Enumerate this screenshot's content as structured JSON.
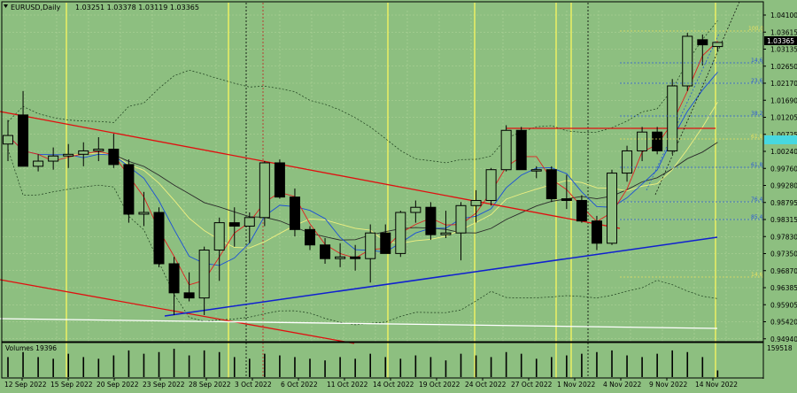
{
  "header": {
    "symbol": "EURUSD,Daily",
    "ohlc": "1.03251 1.03378 1.03119 1.03365"
  },
  "price_axis": {
    "labels": [
      "1.04100",
      "1.03615",
      "1.03135",
      "1.02650",
      "1.02170",
      "1.01690",
      "1.01205",
      "1.00725",
      "1.00240",
      "0.99760",
      "0.99280",
      "0.98795",
      "0.98315",
      "0.97830",
      "0.97350",
      "0.96870",
      "0.96385",
      "0.95905",
      "0.95420",
      "0.94940"
    ],
    "current_price": "1.03365"
  },
  "volume_panel": {
    "title": "Volumes 19396",
    "axis_label": "159518"
  },
  "time_axis": {
    "labels": [
      "12 Sep 2022",
      "15 Sep 2022",
      "20 Sep 2022",
      "23 Sep 2022",
      "28 Sep 2022",
      "3 Oct 2022",
      "6 Oct 2022",
      "11 Oct 2022",
      "14 Oct 2022",
      "19 Oct 2022",
      "24 Oct 2022",
      "27 Oct 2022",
      "1 Nov 2022",
      "4 Nov 2022",
      "9 Nov 2022",
      "14 Nov 2022"
    ]
  },
  "fib_levels": [
    {
      "label": "100.0",
      "color": "#e8e060"
    },
    {
      "label": "14.6",
      "color": "#2e5bd8"
    },
    {
      "label": "23.6",
      "color": "#2e5bd8"
    },
    {
      "label": "38.2",
      "color": "#2e5bd8"
    },
    {
      "label": "61.8",
      "color": "#2e5bd8"
    },
    {
      "label": "76.4",
      "color": "#2e5bd8"
    },
    {
      "label": "85.4",
      "color": "#2e5bd8"
    },
    {
      "label": "14.6",
      "color": "#e8e060"
    },
    {
      "label": "61.8",
      "color": "#e8e060"
    }
  ],
  "colors": {
    "background": "#8dbf80",
    "grid": "#b2d49a",
    "bull_candle": "#8dbf80",
    "bear_candle": "#000000",
    "trend_red": "#e01010",
    "trend_blue": "#1020d0",
    "support_white": "#ffffff",
    "session_yellow": "#f3f360",
    "current_price_box": "#000000",
    "highlight_box": "#48d8e0"
  },
  "chart_data": {
    "type": "candlestick",
    "title": "EURUSD,Daily",
    "ylim": [
      0.947,
      1.043
    ],
    "candles": [
      {
        "date": "9 Sep 2022",
        "open": 1.004,
        "high": 1.011,
        "low": 0.999,
        "close": 1.0065
      },
      {
        "date": "12 Sep 2022",
        "open": 1.0125,
        "high": 1.0195,
        "low": 0.998,
        "close": 0.9975
      },
      {
        "date": "13 Sep 2022",
        "open": 0.9975,
        "high": 1.001,
        "low": 0.996,
        "close": 0.999
      },
      {
        "date": "14 Sep 2022",
        "open": 0.999,
        "high": 1.003,
        "low": 0.9965,
        "close": 1.0005
      },
      {
        "date": "15 Sep 2022",
        "open": 1.0005,
        "high": 1.004,
        "low": 0.997,
        "close": 1.001
      },
      {
        "date": "16 Sep 2022",
        "open": 1.001,
        "high": 1.0045,
        "low": 0.9975,
        "close": 1.002
      },
      {
        "date": "19 Sep 2022",
        "open": 1.002,
        "high": 1.006,
        "low": 0.999,
        "close": 1.0025
      },
      {
        "date": "20 Sep 2022",
        "open": 1.0025,
        "high": 1.007,
        "low": 0.997,
        "close": 0.998
      },
      {
        "date": "21 Sep 2022",
        "open": 0.998,
        "high": 0.9995,
        "low": 0.981,
        "close": 0.9835
      },
      {
        "date": "22 Sep 2022",
        "open": 0.9835,
        "high": 0.99,
        "low": 0.98,
        "close": 0.984
      },
      {
        "date": "23 Sep 2022",
        "open": 0.984,
        "high": 0.9855,
        "low": 0.968,
        "close": 0.969
      },
      {
        "date": "26 Sep 2022",
        "open": 0.969,
        "high": 0.971,
        "low": 0.954,
        "close": 0.9605
      },
      {
        "date": "27 Sep 2022",
        "open": 0.9605,
        "high": 0.9665,
        "low": 0.958,
        "close": 0.959
      },
      {
        "date": "28 Sep 2022",
        "open": 0.959,
        "high": 0.974,
        "low": 0.954,
        "close": 0.973
      },
      {
        "date": "29 Sep 2022",
        "open": 0.973,
        "high": 0.9825,
        "low": 0.964,
        "close": 0.981
      },
      {
        "date": "30 Sep 2022",
        "open": 0.981,
        "high": 0.9855,
        "low": 0.974,
        "close": 0.98
      },
      {
        "date": "3 Oct 2022",
        "open": 0.98,
        "high": 0.984,
        "low": 0.975,
        "close": 0.9825
      },
      {
        "date": "4 Oct 2022",
        "open": 0.9825,
        "high": 0.999,
        "low": 0.98,
        "close": 0.9985
      },
      {
        "date": "5 Oct 2022",
        "open": 0.9985,
        "high": 0.9995,
        "low": 0.988,
        "close": 0.9885
      },
      {
        "date": "6 Oct 2022",
        "open": 0.9885,
        "high": 0.991,
        "low": 0.977,
        "close": 0.979
      },
      {
        "date": "7 Oct 2022",
        "open": 0.979,
        "high": 0.98,
        "low": 0.973,
        "close": 0.9745
      },
      {
        "date": "10 Oct 2022",
        "open": 0.9745,
        "high": 0.9765,
        "low": 0.969,
        "close": 0.9705
      },
      {
        "date": "11 Oct 2022",
        "open": 0.9705,
        "high": 0.975,
        "low": 0.968,
        "close": 0.971
      },
      {
        "date": "12 Oct 2022",
        "open": 0.971,
        "high": 0.9745,
        "low": 0.967,
        "close": 0.9705
      },
      {
        "date": "13 Oct 2022",
        "open": 0.9705,
        "high": 0.9805,
        "low": 0.9635,
        "close": 0.978
      },
      {
        "date": "14 Oct 2022",
        "open": 0.978,
        "high": 0.9805,
        "low": 0.972,
        "close": 0.972
      },
      {
        "date": "17 Oct 2022",
        "open": 0.972,
        "high": 0.9845,
        "low": 0.971,
        "close": 0.984
      },
      {
        "date": "18 Oct 2022",
        "open": 0.984,
        "high": 0.9875,
        "low": 0.981,
        "close": 0.9855
      },
      {
        "date": "19 Oct 2022",
        "open": 0.9855,
        "high": 0.987,
        "low": 0.976,
        "close": 0.9775
      },
      {
        "date": "20 Oct 2022",
        "open": 0.9775,
        "high": 0.9845,
        "low": 0.9765,
        "close": 0.978
      },
      {
        "date": "21 Oct 2022",
        "open": 0.978,
        "high": 0.987,
        "low": 0.97,
        "close": 0.986
      },
      {
        "date": "24 Oct 2022",
        "open": 0.986,
        "high": 0.9905,
        "low": 0.981,
        "close": 0.9875
      },
      {
        "date": "25 Oct 2022",
        "open": 0.9875,
        "high": 0.997,
        "low": 0.986,
        "close": 0.9965
      },
      {
        "date": "26 Oct 2022",
        "open": 0.9965,
        "high": 1.0095,
        "low": 0.996,
        "close": 1.008
      },
      {
        "date": "27 Oct 2022",
        "open": 1.008,
        "high": 1.009,
        "low": 0.9965,
        "close": 0.9965
      },
      {
        "date": "28 Oct 2022",
        "open": 0.9965,
        "high": 0.9975,
        "low": 0.994,
        "close": 0.9965
      },
      {
        "date": "31 Oct 2022",
        "open": 0.9965,
        "high": 0.9975,
        "low": 0.987,
        "close": 0.988
      },
      {
        "date": "1 Nov 2022",
        "open": 0.988,
        "high": 0.995,
        "low": 0.985,
        "close": 0.9875
      },
      {
        "date": "2 Nov 2022",
        "open": 0.9875,
        "high": 0.989,
        "low": 0.981,
        "close": 0.9815
      },
      {
        "date": "3 Nov 2022",
        "open": 0.9815,
        "high": 0.983,
        "low": 0.973,
        "close": 0.975
      },
      {
        "date": "4 Nov 2022",
        "open": 0.975,
        "high": 0.9965,
        "low": 0.9745,
        "close": 0.9955
      },
      {
        "date": "7 Nov 2022",
        "open": 0.9955,
        "high": 1.0035,
        "low": 0.993,
        "close": 1.002
      },
      {
        "date": "8 Nov 2022",
        "open": 1.002,
        "high": 1.009,
        "low": 0.999,
        "close": 1.0075
      },
      {
        "date": "9 Nov 2022",
        "open": 1.0075,
        "high": 1.009,
        "low": 1.001,
        "close": 1.002
      },
      {
        "date": "10 Nov 2022",
        "open": 1.002,
        "high": 1.023,
        "low": 1.001,
        "close": 1.021
      },
      {
        "date": "11 Nov 2022",
        "open": 1.021,
        "high": 1.0365,
        "low": 1.0195,
        "close": 1.0355
      },
      {
        "date": "14 Nov 2022",
        "open": 1.0345,
        "high": 1.036,
        "low": 1.027,
        "close": 1.033
      },
      {
        "date": "15 Nov 2022",
        "open": 1.0325,
        "high": 1.0338,
        "low": 1.0312,
        "close": 1.0337
      }
    ],
    "volumes": [
      12,
      15,
      12,
      11,
      14,
      12,
      11,
      13,
      16,
      14,
      15,
      17,
      13,
      16,
      15,
      12,
      11,
      14,
      13,
      12,
      11,
      10,
      12,
      11,
      14,
      12,
      11,
      13,
      12,
      10,
      14,
      13,
      12,
      15,
      14,
      11,
      12,
      13,
      14,
      15,
      16,
      13,
      12,
      14,
      16,
      15,
      12,
      4
    ]
  }
}
